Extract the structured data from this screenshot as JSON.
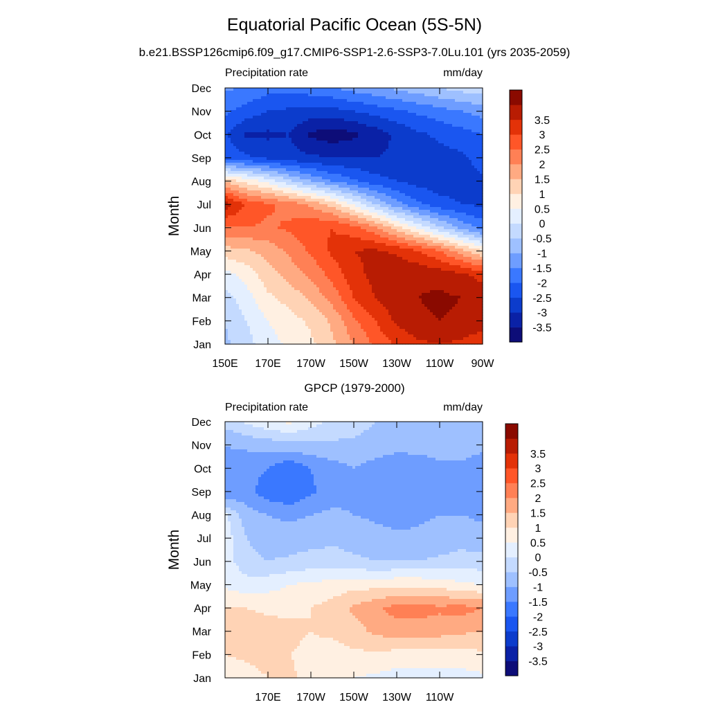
{
  "figure": {
    "title": "Equatorial Pacific Ocean (5S-5N)"
  },
  "chart_data": [
    {
      "type": "heatmap",
      "title": "b.e21.BSSP126cmip6.f09_g17.CMIP6-SSP1-2.6-SSP3-7.0Lu.101 (yrs 2035-2059)",
      "left_label": "Precipitation rate",
      "right_label": "mm/day",
      "ylabel": "Month",
      "xlabel": "",
      "x_range": [
        150,
        270
      ],
      "y_range": [
        0,
        11
      ],
      "x_ticks": [
        {
          "value": 150,
          "label": "150E"
        },
        {
          "value": 170,
          "label": "170E"
        },
        {
          "value": 190,
          "label": "170W"
        },
        {
          "value": 210,
          "label": "150W"
        },
        {
          "value": 230,
          "label": "130W"
        },
        {
          "value": 250,
          "label": "110W"
        },
        {
          "value": 270,
          "label": "90W"
        }
      ],
      "y_ticks": [
        "Jan",
        "Feb",
        "Mar",
        "Apr",
        "May",
        "Jun",
        "Jul",
        "Aug",
        "Sep",
        "Oct",
        "Nov",
        "Dec"
      ],
      "x": [
        150,
        160,
        170,
        180,
        190,
        200,
        210,
        220,
        230,
        240,
        250,
        260,
        270
      ],
      "z": [
        [
          -0.6,
          -0.2,
          0.3,
          0.6,
          0.9,
          1.4,
          2.0,
          2.6,
          3.1,
          3.4,
          3.5,
          3.4,
          3.2
        ],
        [
          -0.5,
          0.0,
          0.5,
          0.8,
          1.1,
          1.6,
          2.4,
          3.0,
          3.6,
          3.9,
          4.0,
          3.9,
          3.7
        ],
        [
          -0.2,
          0.3,
          0.9,
          1.2,
          1.6,
          2.2,
          3.0,
          3.5,
          3.9,
          4.0,
          4.1,
          4.0,
          3.8
        ],
        [
          0.3,
          0.7,
          1.3,
          1.7,
          2.1,
          2.7,
          3.3,
          3.7,
          3.9,
          3.9,
          3.8,
          3.6,
          3.3
        ],
        [
          1.3,
          1.4,
          1.7,
          2.1,
          2.6,
          3.1,
          3.5,
          3.6,
          3.4,
          3.0,
          2.5,
          1.7,
          1.0
        ],
        [
          2.4,
          2.5,
          2.4,
          2.6,
          2.9,
          3.0,
          2.7,
          2.1,
          1.2,
          0.4,
          -0.4,
          -1.1,
          -1.7
        ],
        [
          3.8,
          2.9,
          2.6,
          2.3,
          1.9,
          1.3,
          0.4,
          -0.5,
          -1.3,
          -1.9,
          -2.3,
          -2.5,
          -2.6
        ],
        [
          1.4,
          0.8,
          0.3,
          -0.4,
          -1.0,
          -1.5,
          -1.9,
          -2.3,
          -2.5,
          -2.7,
          -2.8,
          -2.7,
          -2.6
        ],
        [
          -2.2,
          -2.4,
          -2.6,
          -2.8,
          -2.9,
          -3.0,
          -3.0,
          -3.0,
          -2.9,
          -2.8,
          -2.7,
          -2.6,
          -2.3
        ],
        [
          -2.4,
          -3.1,
          -3.1,
          -3.0,
          -3.6,
          -3.8,
          -3.6,
          -3.3,
          -2.9,
          -2.6,
          -2.4,
          -2.2,
          -2.0
        ],
        [
          -1.9,
          -2.2,
          -2.5,
          -2.6,
          -2.7,
          -2.7,
          -2.5,
          -2.3,
          -2.1,
          -1.9,
          -1.7,
          -1.5,
          -1.3
        ],
        [
          -1.4,
          -1.6,
          -1.8,
          -1.8,
          -1.7,
          -1.5,
          -1.3,
          -1.1,
          -0.9,
          -0.7,
          -0.5,
          -0.3,
          -0.2
        ]
      ],
      "colorbar_levels": [
        -4,
        -3.5,
        -3,
        -2.5,
        -2,
        -1.5,
        -1,
        -0.5,
        0,
        0.5,
        1,
        1.5,
        2,
        2.5,
        3,
        3.5,
        4
      ],
      "colorbar_labels": [
        "-3.5",
        "-3",
        "-2.5",
        "-2",
        "-1.5",
        "-1",
        "-0.5",
        "0",
        "0.5",
        "1",
        "1.5",
        "2",
        "2.5",
        "3",
        "3.5"
      ],
      "colors": [
        "#0d0d78",
        "#0a21a6",
        "#0c3ccc",
        "#1a56f0",
        "#3a78ff",
        "#6e9dff",
        "#9ec0ff",
        "#c4daff",
        "#e4efff",
        "#fff0e2",
        "#ffd3b5",
        "#ffaa82",
        "#ff8055",
        "#ff5628",
        "#e33208",
        "#b81c03",
        "#8a0a00"
      ]
    },
    {
      "type": "heatmap",
      "title": "GPCP (1979-2000)",
      "left_label": "Precipitation rate",
      "right_label": "mm/day",
      "ylabel": "Month",
      "xlabel": "",
      "x_range": [
        150,
        270
      ],
      "y_range": [
        0,
        11
      ],
      "x_ticks": [
        {
          "value": 170,
          "label": "170E"
        },
        {
          "value": 190,
          "label": "170W"
        },
        {
          "value": 210,
          "label": "150W"
        },
        {
          "value": 230,
          "label": "130W"
        },
        {
          "value": 250,
          "label": "110W"
        }
      ],
      "y_ticks": [
        "Jan",
        "Feb",
        "Mar",
        "Apr",
        "May",
        "Jun",
        "Jul",
        "Aug",
        "Sep",
        "Oct",
        "Nov",
        "Dec"
      ],
      "x": [
        150,
        160,
        170,
        180,
        190,
        200,
        210,
        220,
        230,
        240,
        250,
        260,
        270
      ],
      "z": [
        [
          0.6,
          0.8,
          1.0,
          1.1,
          0.8,
          0.6,
          0.5,
          0.4,
          0.3,
          0.3,
          0.3,
          0.3,
          0.4
        ],
        [
          1.0,
          1.1,
          1.2,
          1.0,
          0.9,
          0.8,
          0.9,
          0.9,
          0.8,
          0.8,
          0.8,
          0.8,
          0.9
        ],
        [
          1.2,
          1.3,
          1.2,
          1.1,
          1.0,
          1.1,
          1.3,
          1.6,
          1.8,
          1.8,
          1.7,
          1.6,
          1.5
        ],
        [
          1.0,
          1.0,
          0.9,
          0.9,
          1.0,
          1.2,
          1.6,
          1.9,
          2.2,
          2.2,
          2.1,
          2.2,
          2.0
        ],
        [
          0.4,
          0.2,
          0.3,
          0.5,
          0.6,
          0.7,
          0.8,
          0.8,
          0.9,
          0.9,
          0.8,
          0.6,
          0.5
        ],
        [
          0.2,
          -0.3,
          -0.5,
          -0.4,
          -0.3,
          -0.3,
          -0.4,
          -0.5,
          -0.5,
          -0.5,
          -0.4,
          -0.3,
          -0.3
        ],
        [
          0.3,
          -0.5,
          -0.8,
          -0.8,
          -0.7,
          -0.6,
          -0.7,
          -0.8,
          -0.9,
          -0.9,
          -0.8,
          -0.7,
          -0.8
        ],
        [
          0.1,
          -0.8,
          -1.0,
          -1.1,
          -1.0,
          -0.9,
          -1.0,
          -1.1,
          -1.2,
          -1.1,
          -1.0,
          -1.0,
          -1.1
        ],
        [
          -1.5,
          -1.3,
          -1.8,
          -2.0,
          -1.6,
          -1.2,
          -1.1,
          -1.3,
          -1.4,
          -1.3,
          -1.1,
          -1.4,
          -1.5
        ],
        [
          -1.1,
          -1.3,
          -1.5,
          -1.9,
          -1.5,
          -1.2,
          -1.0,
          -1.2,
          -1.4,
          -1.3,
          -1.1,
          -1.1,
          -1.2
        ],
        [
          -1.0,
          -0.9,
          -0.8,
          -0.7,
          -0.6,
          -0.6,
          -0.6,
          -0.7,
          -0.8,
          -0.8,
          -0.8,
          -0.8,
          -0.9
        ],
        [
          -0.3,
          0.1,
          0.4,
          0.6,
          0.2,
          -0.1,
          -0.3,
          -0.5,
          -0.6,
          -0.7,
          -0.8,
          -0.8,
          -0.8
        ]
      ],
      "colorbar_levels": [
        -4,
        -3.5,
        -3,
        -2.5,
        -2,
        -1.5,
        -1,
        -0.5,
        0,
        0.5,
        1,
        1.5,
        2,
        2.5,
        3,
        3.5,
        4
      ],
      "colorbar_labels": [
        "-3.5",
        "-3",
        "-2.5",
        "-2",
        "-1.5",
        "-1",
        "-0.5",
        "0",
        "0.5",
        "1",
        "1.5",
        "2",
        "2.5",
        "3",
        "3.5"
      ],
      "colors": [
        "#0d0d78",
        "#0a21a6",
        "#0c3ccc",
        "#1a56f0",
        "#3a78ff",
        "#6e9dff",
        "#9ec0ff",
        "#c4daff",
        "#e4efff",
        "#fff0e2",
        "#ffd3b5",
        "#ffaa82",
        "#ff8055",
        "#ff5628",
        "#e33208",
        "#b81c03",
        "#8a0a00"
      ]
    }
  ]
}
